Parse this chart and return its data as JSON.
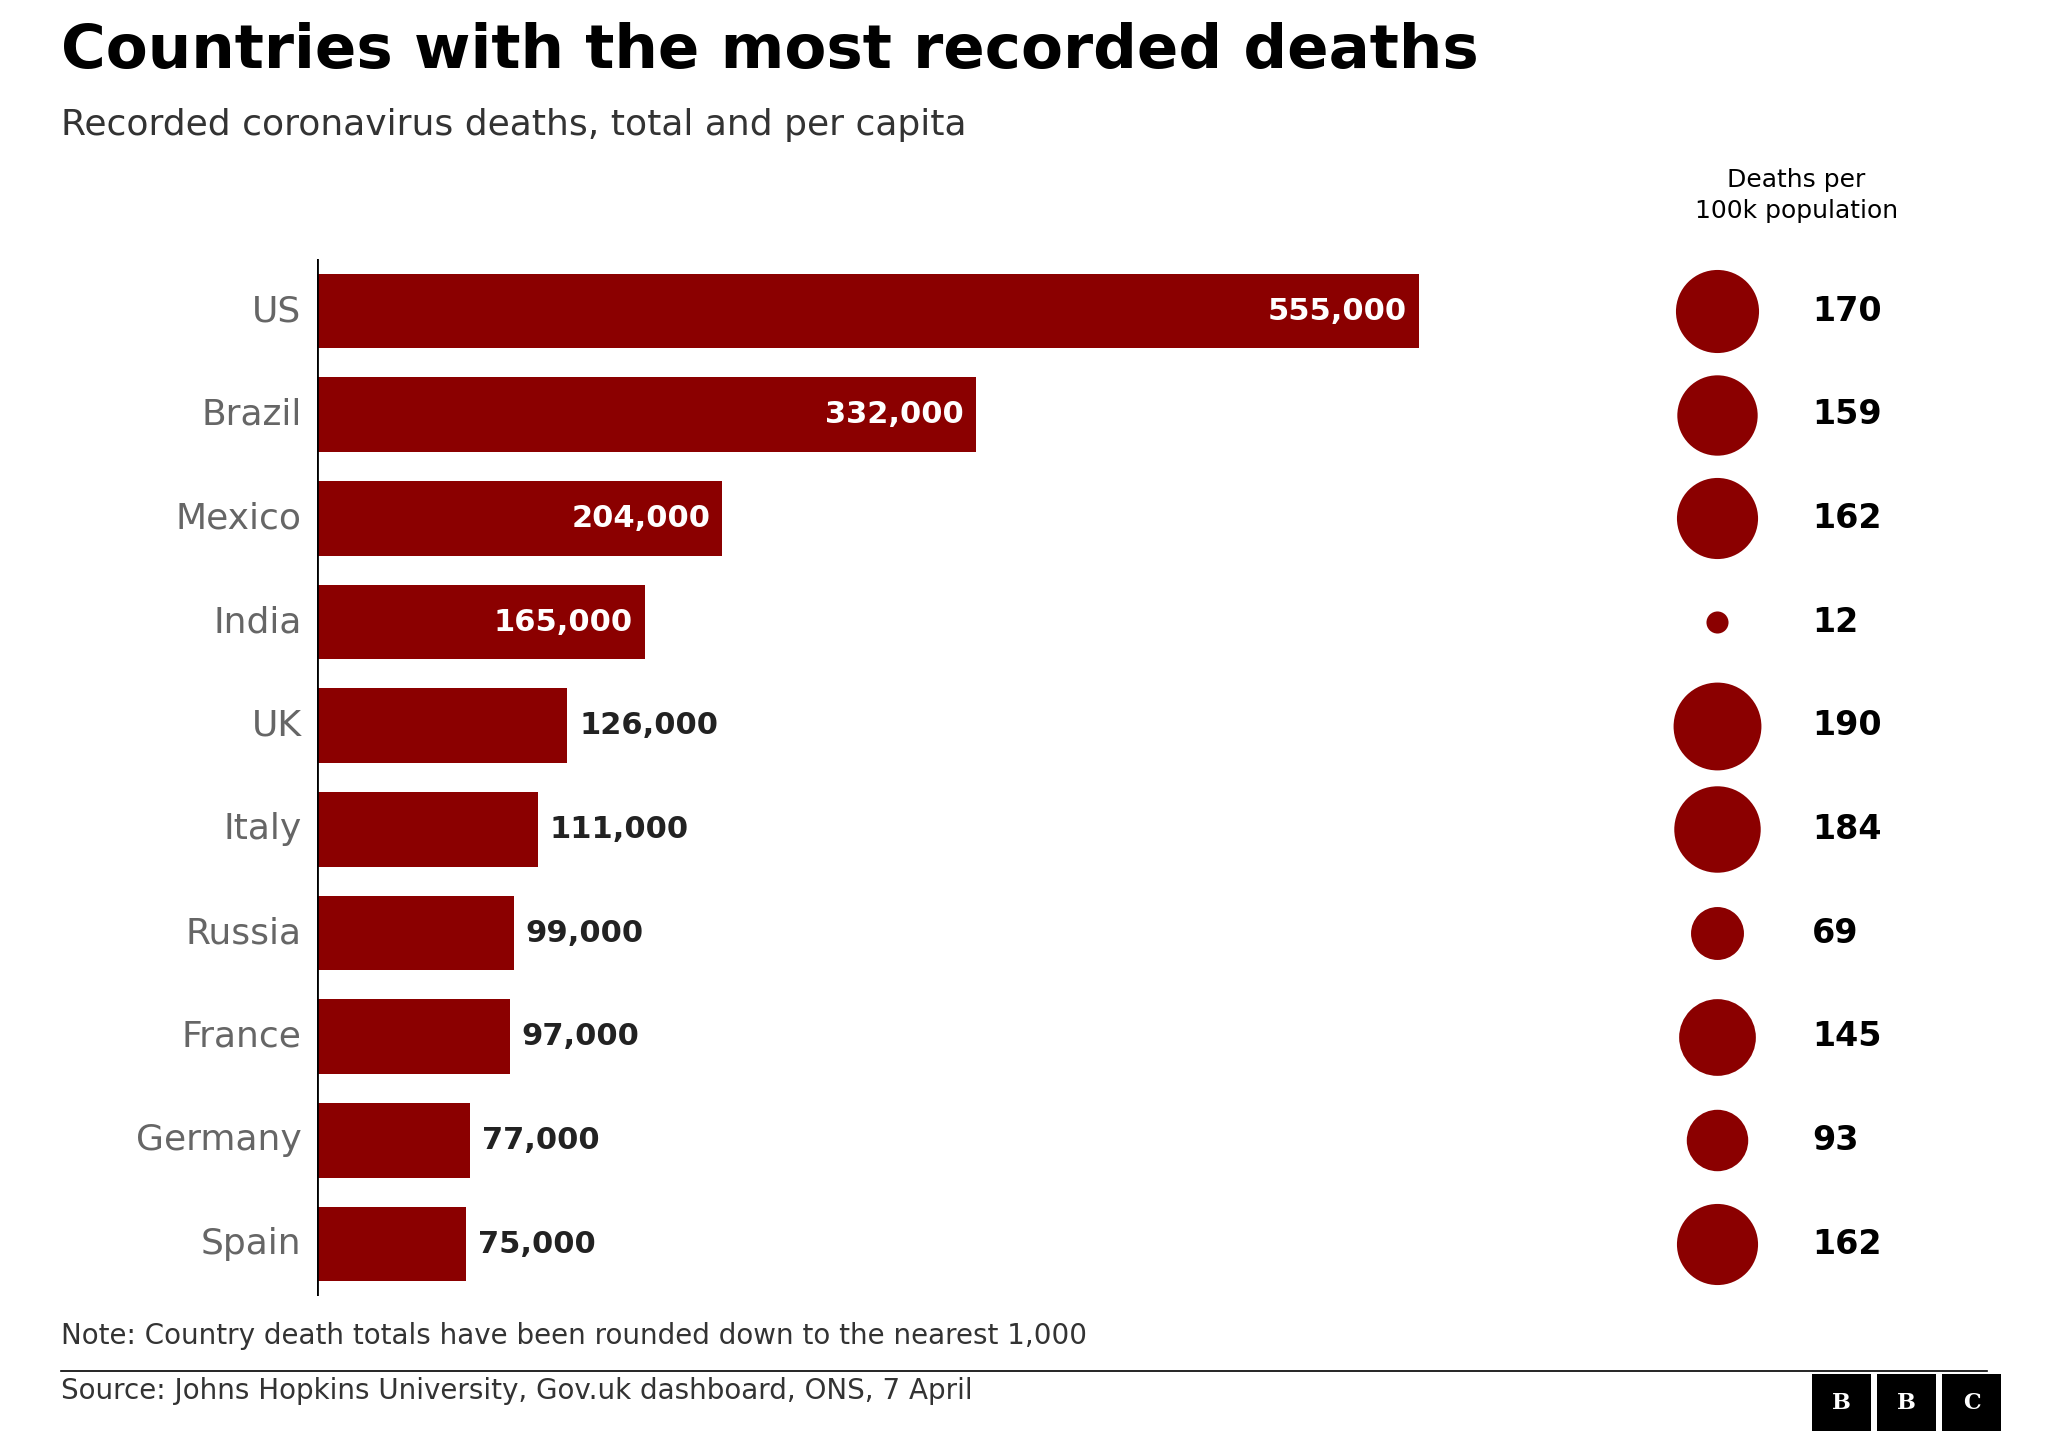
{
  "title": "Countries with the most recorded deaths",
  "subtitle": "Recorded coronavirus deaths, total and per capita",
  "note": "Note: Country death totals have been rounded down to the nearest 1,000",
  "source": "Source: Johns Hopkins University, Gov.uk dashboard, ONS, 7 April",
  "legend_label": "Deaths per\n100k population",
  "countries": [
    "US",
    "Brazil",
    "Mexico",
    "India",
    "UK",
    "Italy",
    "Russia",
    "France",
    "Germany",
    "Spain"
  ],
  "deaths": [
    555000,
    332000,
    204000,
    165000,
    126000,
    111000,
    99000,
    97000,
    77000,
    75000
  ],
  "deaths_labels": [
    "555,000",
    "332,000",
    "204,000",
    "165,000",
    "126,000",
    "111,000",
    "99,000",
    "97,000",
    "77,000",
    "75,000"
  ],
  "per_capita": [
    170,
    159,
    162,
    12,
    190,
    184,
    69,
    145,
    93,
    162
  ],
  "label_inside": [
    true,
    true,
    true,
    true,
    false,
    false,
    false,
    false,
    false,
    false
  ],
  "bar_color": "#8B0000",
  "dot_color": "#8B0000",
  "background_color": "#FFFFFF",
  "title_fontsize": 44,
  "subtitle_fontsize": 26,
  "bar_label_fontsize": 22,
  "country_fontsize": 26,
  "per_capita_fontsize": 24,
  "legend_fontsize": 18,
  "note_fontsize": 20,
  "source_fontsize": 20,
  "max_dot_size": 4000,
  "max_per_capita": 190
}
